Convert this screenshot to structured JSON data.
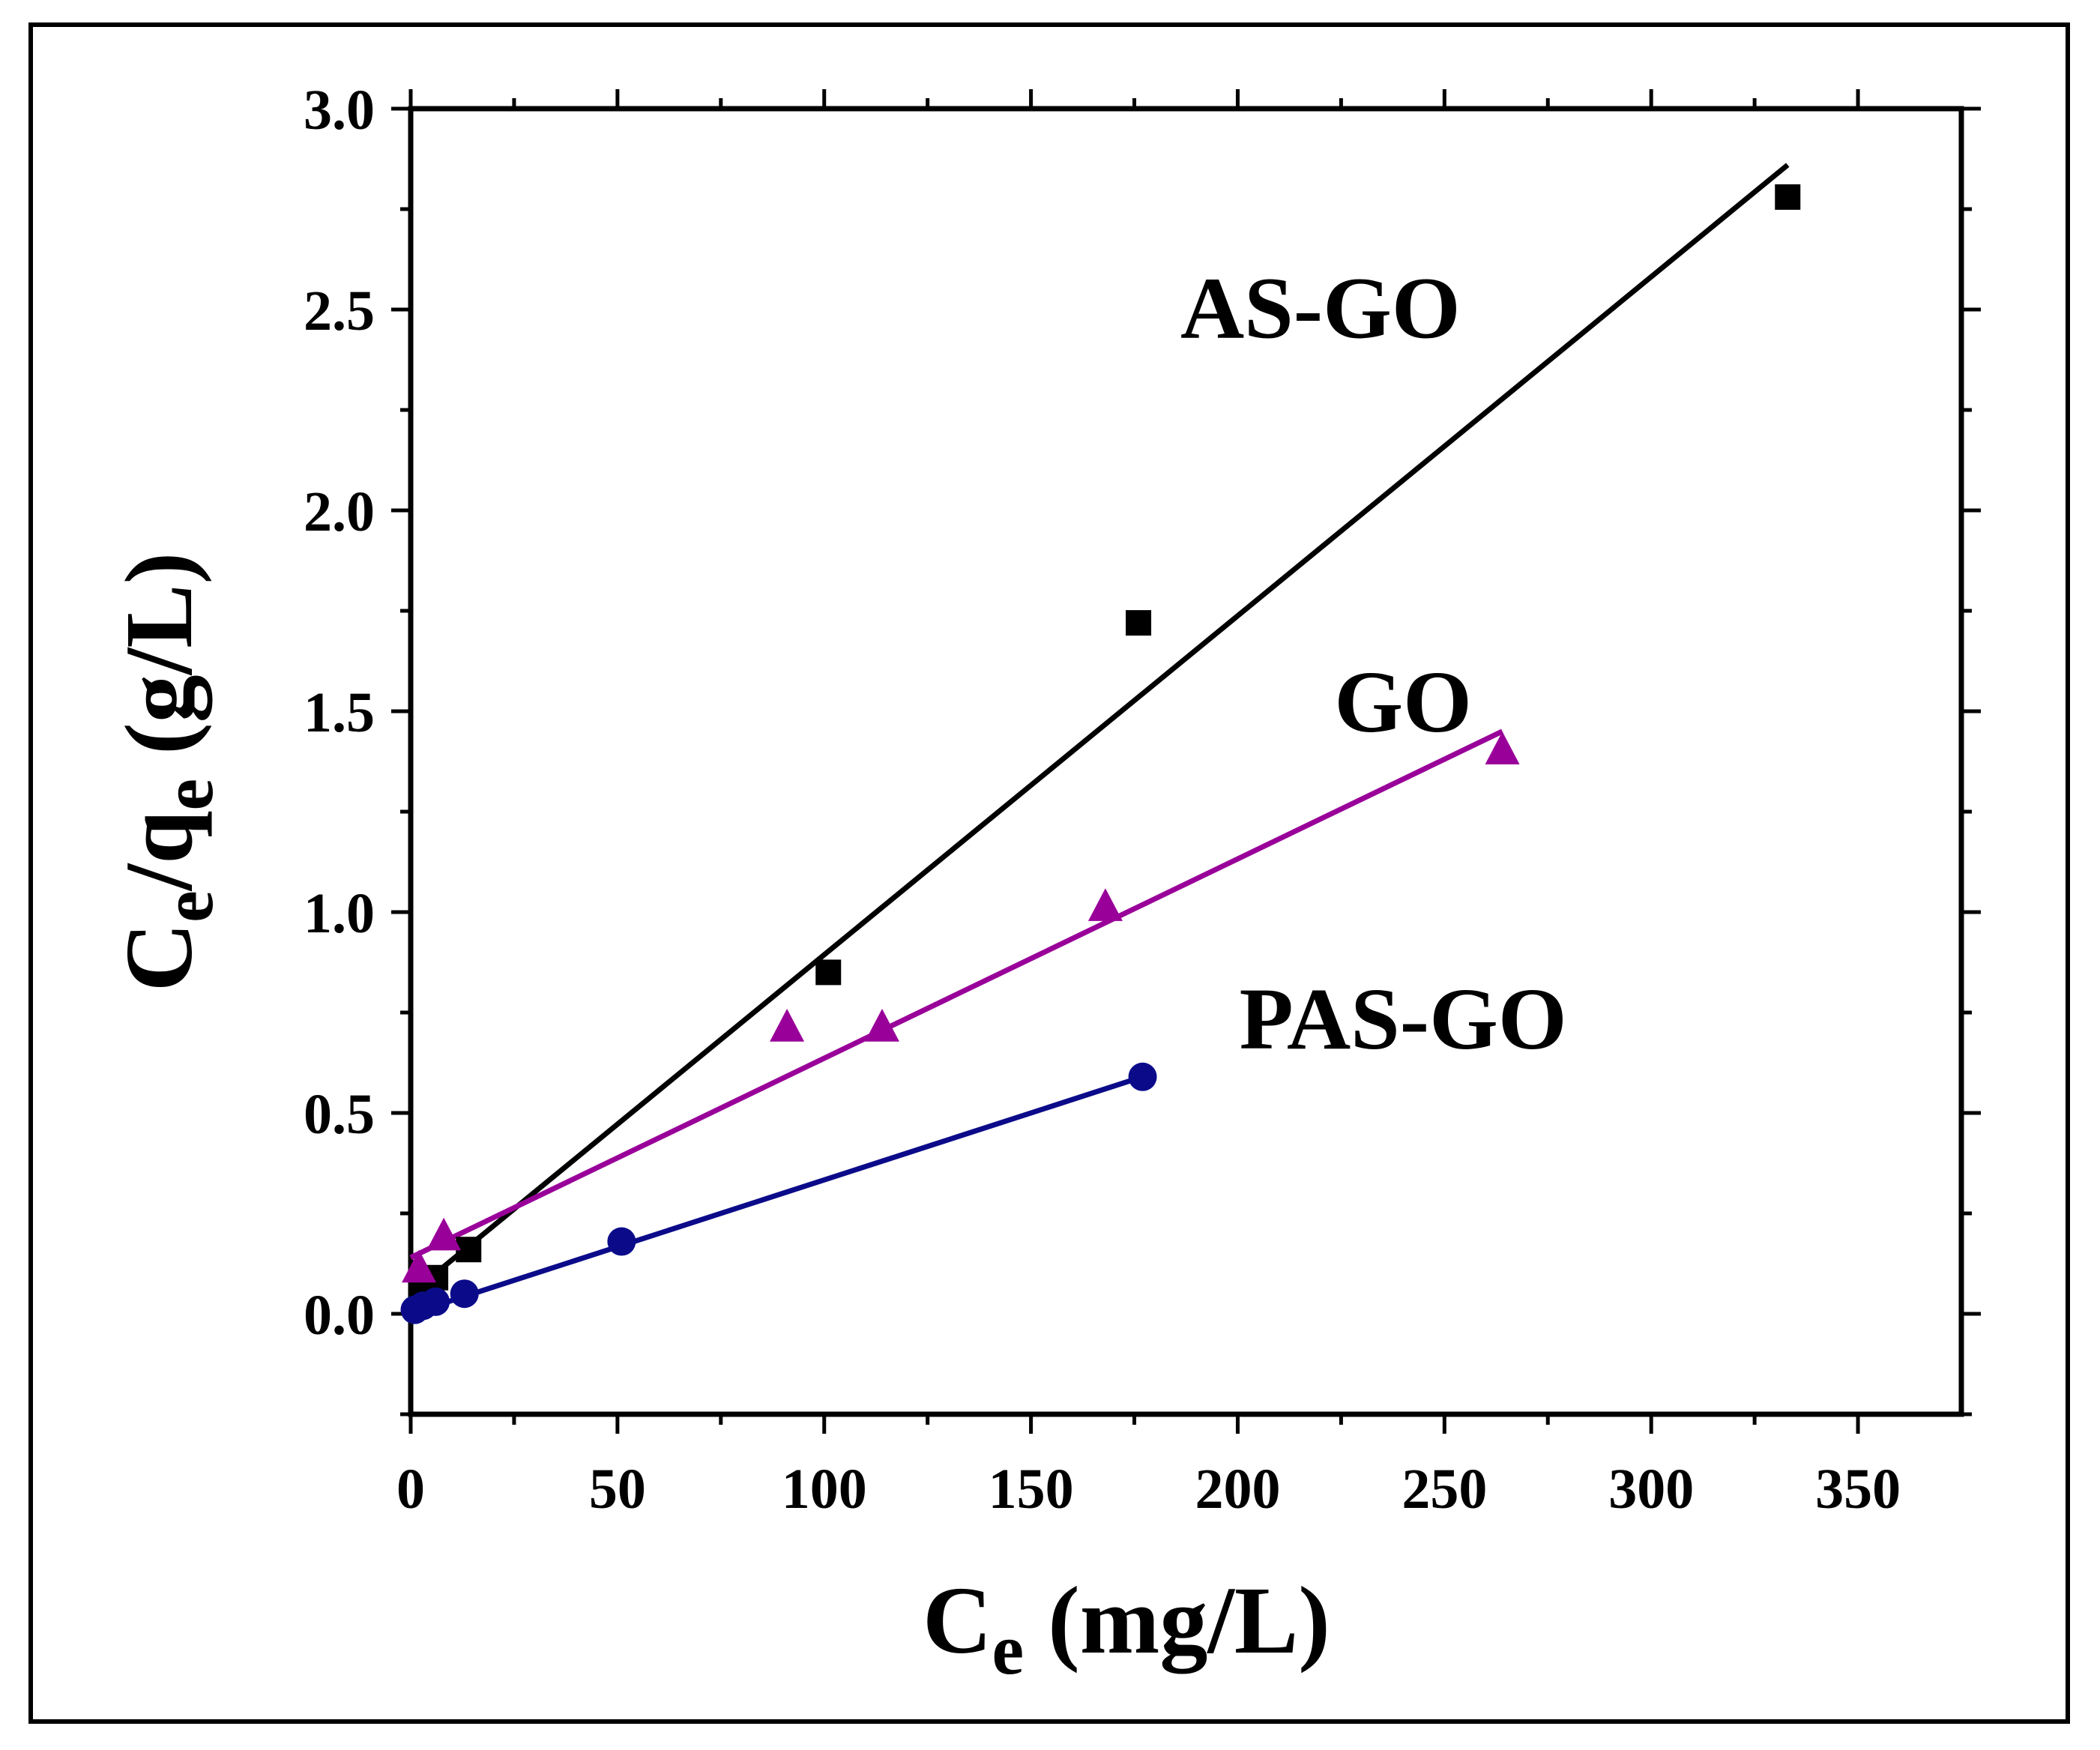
{
  "chart_data": {
    "type": "scatter",
    "title": "",
    "xlabel": {
      "main": "C",
      "sub": "e",
      "rest": " (mg/L)"
    },
    "ylabel": {
      "main": "C",
      "sub1": "e",
      "mid": "/q",
      "sub2": "e",
      "rest": " (g/L)"
    },
    "xlim": [
      0,
      375
    ],
    "ylim": [
      -0.25,
      3.0
    ],
    "xticks": [
      0,
      50,
      100,
      150,
      200,
      250,
      300,
      350
    ],
    "yticks": [
      0.0,
      0.5,
      1.0,
      1.5,
      2.0,
      2.5,
      3.0
    ],
    "x_minor_step": 25,
    "y_minor_step": 0.25,
    "grid": false,
    "series": [
      {
        "name": "AS-GO",
        "color": "#000000",
        "marker": "square",
        "points": [
          [
            3,
            0.05
          ],
          [
            6,
            0.09
          ],
          [
            14,
            0.16
          ],
          [
            101,
            0.85
          ],
          [
            176,
            1.72
          ],
          [
            333,
            2.78
          ]
        ],
        "fit": [
          [
            0,
            0.05
          ],
          [
            333,
            2.86
          ]
        ],
        "label_at": [
          220,
          2.43
        ]
      },
      {
        "name": "GO",
        "color": "#990099",
        "marker": "triangle",
        "points": [
          [
            2,
            0.11
          ],
          [
            8,
            0.19
          ],
          [
            91,
            0.71
          ],
          [
            114,
            0.71
          ],
          [
            168,
            1.01
          ],
          [
            264,
            1.4
          ]
        ],
        "fit": [
          [
            0,
            0.14
          ],
          [
            264,
            1.45
          ]
        ],
        "label_at": [
          240,
          1.45
        ]
      },
      {
        "name": "PAS-GO",
        "color": "#0b0b8a",
        "marker": "circle",
        "points": [
          [
            1,
            0.01
          ],
          [
            3,
            0.02
          ],
          [
            6,
            0.03
          ],
          [
            13,
            0.05
          ],
          [
            51,
            0.18
          ],
          [
            177,
            0.59
          ]
        ],
        "fit": [
          [
            0,
            0.0
          ],
          [
            177,
            0.59
          ]
        ],
        "label_at": [
          240,
          0.66
        ]
      }
    ]
  }
}
